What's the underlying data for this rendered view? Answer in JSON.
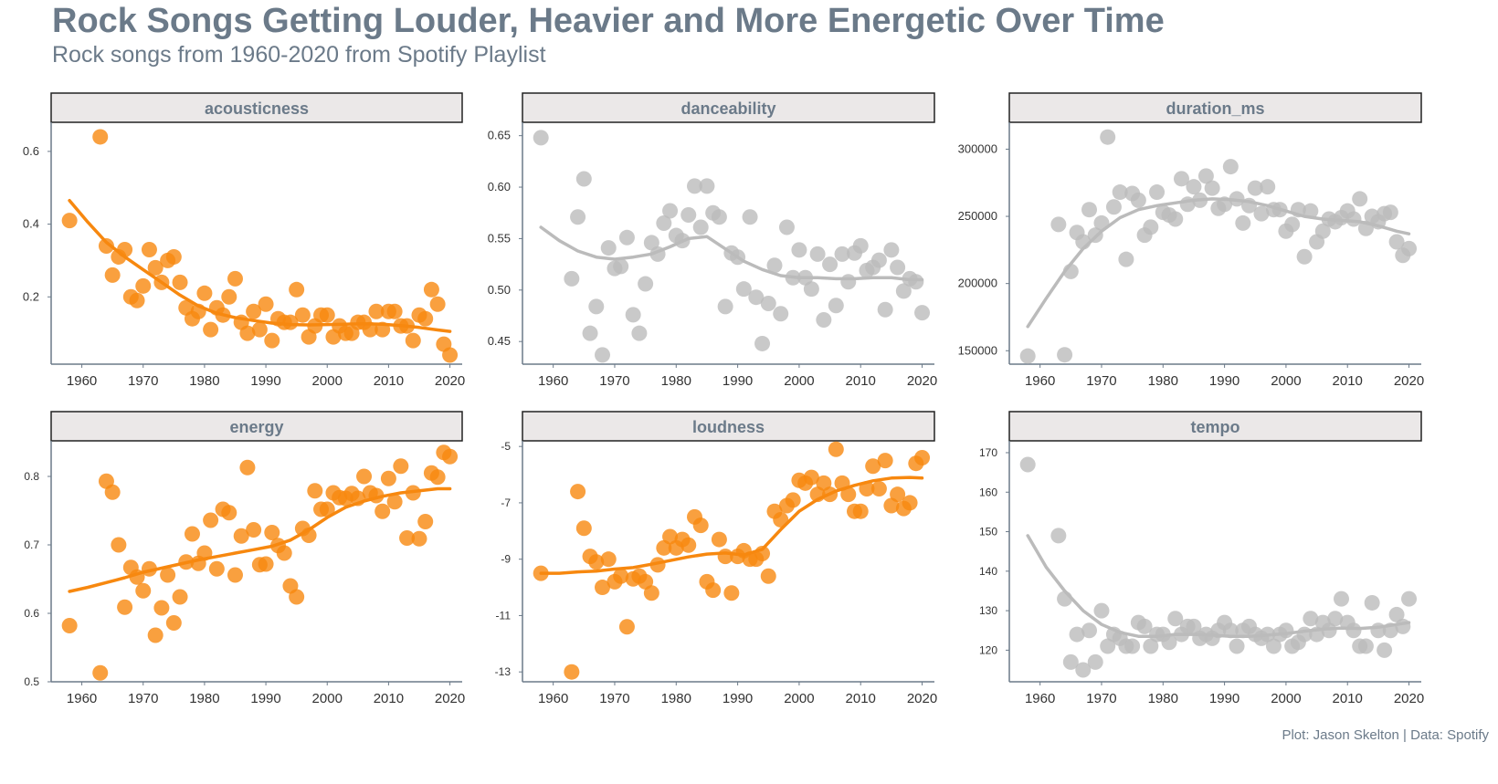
{
  "title": "Rock Songs Getting Louder, Heavier and More Energetic Over Time",
  "subtitle": "Rock songs from 1960-2020 from Spotify Playlist",
  "caption": "Plot: Jason Skelton | Data: Spotify",
  "colors": {
    "highlight": "#f7880f",
    "muted": "#bbbbbb",
    "strip_bg": "#ebe8e8",
    "axis": "#6b7a89",
    "text": "#6b7a89"
  },
  "chart_data": [
    {
      "type": "scatter",
      "title": "acousticness",
      "highlight": true,
      "xlim": [
        1955,
        2022
      ],
      "ylim": [
        0.015,
        0.68
      ],
      "xticks": [
        1960,
        1970,
        1980,
        1990,
        2000,
        2010,
        2020
      ],
      "yticks": [
        0.2,
        0.4,
        0.6
      ],
      "ytick_labels": [
        "0.2",
        "0.4",
        "0.6"
      ],
      "x": [
        1958,
        1963,
        1964,
        1965,
        1966,
        1967,
        1968,
        1969,
        1970,
        1971,
        1972,
        1973,
        1974,
        1975,
        1976,
        1977,
        1978,
        1979,
        1980,
        1981,
        1982,
        1983,
        1984,
        1985,
        1986,
        1987,
        1988,
        1989,
        1990,
        1991,
        1992,
        1993,
        1994,
        1995,
        1996,
        1997,
        1998,
        1999,
        2000,
        2001,
        2002,
        2003,
        2004,
        2005,
        2006,
        2007,
        2008,
        2009,
        2010,
        2011,
        2012,
        2013,
        2014,
        2015,
        2016,
        2017,
        2018,
        2019,
        2020
      ],
      "y": [
        0.41,
        0.64,
        0.34,
        0.26,
        0.31,
        0.33,
        0.2,
        0.19,
        0.23,
        0.33,
        0.28,
        0.24,
        0.3,
        0.31,
        0.24,
        0.17,
        0.14,
        0.16,
        0.21,
        0.11,
        0.17,
        0.15,
        0.2,
        0.25,
        0.13,
        0.1,
        0.16,
        0.11,
        0.18,
        0.08,
        0.14,
        0.13,
        0.13,
        0.22,
        0.15,
        0.09,
        0.12,
        0.15,
        0.15,
        0.09,
        0.12,
        0.1,
        0.1,
        0.13,
        0.13,
        0.11,
        0.16,
        0.11,
        0.16,
        0.16,
        0.12,
        0.12,
        0.08,
        0.15,
        0.14,
        0.22,
        0.18,
        0.07,
        0.04
      ],
      "trend_x": [
        1958,
        1961,
        1964,
        1967,
        1970,
        1973,
        1976,
        1979,
        1982,
        1985,
        1988,
        1991,
        1994,
        1997,
        2000,
        2003,
        2006,
        2009,
        2012,
        2015,
        2018,
        2020
      ],
      "trend_y": [
        0.465,
        0.405,
        0.35,
        0.31,
        0.275,
        0.24,
        0.205,
        0.175,
        0.155,
        0.143,
        0.135,
        0.128,
        0.124,
        0.123,
        0.124,
        0.125,
        0.126,
        0.125,
        0.121,
        0.116,
        0.109,
        0.105
      ]
    },
    {
      "type": "scatter",
      "title": "danceability",
      "highlight": false,
      "xlim": [
        1955,
        2022
      ],
      "ylim": [
        0.428,
        0.663
      ],
      "xticks": [
        1960,
        1970,
        1980,
        1990,
        2000,
        2010,
        2020
      ],
      "yticks": [
        0.45,
        0.5,
        0.55,
        0.6,
        0.65
      ],
      "ytick_labels": [
        "0.45",
        "0.50",
        "0.55",
        "0.60",
        "0.65"
      ],
      "x": [
        1958,
        1963,
        1964,
        1965,
        1966,
        1967,
        1968,
        1969,
        1970,
        1971,
        1972,
        1973,
        1974,
        1975,
        1976,
        1977,
        1978,
        1979,
        1980,
        1981,
        1982,
        1983,
        1984,
        1985,
        1986,
        1987,
        1988,
        1989,
        1990,
        1991,
        1992,
        1993,
        1994,
        1995,
        1996,
        1997,
        1998,
        1999,
        2000,
        2001,
        2002,
        2003,
        2004,
        2005,
        2006,
        2007,
        2008,
        2009,
        2010,
        2011,
        2012,
        2013,
        2014,
        2015,
        2016,
        2017,
        2018,
        2019,
        2020
      ],
      "y": [
        0.648,
        0.511,
        0.571,
        0.608,
        0.458,
        0.484,
        0.437,
        0.541,
        0.521,
        0.523,
        0.551,
        0.476,
        0.458,
        0.506,
        0.546,
        0.535,
        0.565,
        0.577,
        0.553,
        0.548,
        0.573,
        0.601,
        0.561,
        0.601,
        0.575,
        0.571,
        0.484,
        0.536,
        0.532,
        0.501,
        0.571,
        0.493,
        0.448,
        0.487,
        0.524,
        0.477,
        0.561,
        0.512,
        0.539,
        0.512,
        0.501,
        0.535,
        0.471,
        0.525,
        0.485,
        0.535,
        0.508,
        0.536,
        0.543,
        0.519,
        0.522,
        0.529,
        0.481,
        0.539,
        0.522,
        0.499,
        0.511,
        0.508,
        0.478
      ],
      "trend_x": [
        1958,
        1961,
        1964,
        1967,
        1970,
        1973,
        1976,
        1979,
        1982,
        1985,
        1988,
        1991,
        1994,
        1997,
        2000,
        2003,
        2006,
        2009,
        2012,
        2015,
        2018,
        2020
      ],
      "trend_y": [
        0.561,
        0.548,
        0.538,
        0.532,
        0.53,
        0.532,
        0.535,
        0.542,
        0.55,
        0.552,
        0.54,
        0.528,
        0.52,
        0.514,
        0.512,
        0.512,
        0.511,
        0.511,
        0.512,
        0.512,
        0.51,
        0.51
      ]
    },
    {
      "type": "scatter",
      "title": "duration_ms",
      "highlight": false,
      "xlim": [
        1955,
        2022
      ],
      "ylim": [
        140000,
        320000
      ],
      "xticks": [
        1960,
        1970,
        1980,
        1990,
        2000,
        2010,
        2020
      ],
      "yticks": [
        150000,
        200000,
        250000,
        300000
      ],
      "ytick_labels": [
        "150000",
        "200000",
        "250000",
        "300000"
      ],
      "x": [
        1958,
        1963,
        1964,
        1965,
        1966,
        1967,
        1968,
        1969,
        1970,
        1971,
        1972,
        1973,
        1974,
        1975,
        1976,
        1977,
        1978,
        1979,
        1980,
        1981,
        1982,
        1983,
        1984,
        1985,
        1986,
        1987,
        1988,
        1989,
        1990,
        1991,
        1992,
        1993,
        1994,
        1995,
        1996,
        1997,
        1998,
        1999,
        2000,
        2001,
        2002,
        2003,
        2004,
        2005,
        2006,
        2007,
        2008,
        2009,
        2010,
        2011,
        2012,
        2013,
        2014,
        2015,
        2016,
        2017,
        2018,
        2019,
        2020
      ],
      "y": [
        146000,
        244000,
        147000,
        209000,
        238000,
        231000,
        255000,
        236000,
        245000,
        309000,
        257000,
        268000,
        218000,
        267000,
        262000,
        236000,
        242000,
        268000,
        253000,
        251000,
        248000,
        278000,
        259000,
        272000,
        262000,
        280000,
        271000,
        256000,
        259000,
        287000,
        263000,
        245000,
        258000,
        271000,
        252000,
        272000,
        255000,
        255000,
        239000,
        244000,
        255000,
        220000,
        254000,
        231000,
        239000,
        248000,
        246000,
        249000,
        254000,
        248000,
        263000,
        241000,
        250000,
        246000,
        252000,
        253000,
        231000,
        221000,
        226000
      ],
      "trend_x": [
        1958,
        1961,
        1964,
        1967,
        1970,
        1973,
        1976,
        1979,
        1982,
        1985,
        1988,
        1991,
        1994,
        1997,
        2000,
        2003,
        2006,
        2009,
        2012,
        2015,
        2018,
        2020
      ],
      "trend_y": [
        168000,
        189000,
        209000,
        226000,
        239000,
        249000,
        255000,
        258000,
        260000,
        262000,
        263000,
        262500,
        261000,
        258000,
        254000,
        250000,
        248000,
        247000,
        246000,
        243000,
        239000,
        237000
      ]
    },
    {
      "type": "scatter",
      "title": "energy",
      "highlight": true,
      "xlim": [
        1955,
        2022
      ],
      "ylim": [
        0.5,
        0.852
      ],
      "xticks": [
        1960,
        1970,
        1980,
        1990,
        2000,
        2010,
        2020
      ],
      "yticks": [
        0.5,
        0.6,
        0.7,
        0.8
      ],
      "ytick_labels": [
        "0.5",
        "0.6",
        "0.7",
        "0.8"
      ],
      "x": [
        1958,
        1963,
        1964,
        1965,
        1966,
        1967,
        1968,
        1969,
        1970,
        1971,
        1972,
        1973,
        1974,
        1975,
        1976,
        1977,
        1978,
        1979,
        1980,
        1981,
        1982,
        1983,
        1984,
        1985,
        1986,
        1987,
        1988,
        1989,
        1990,
        1991,
        1992,
        1993,
        1994,
        1995,
        1996,
        1997,
        1998,
        1999,
        2000,
        2001,
        2002,
        2003,
        2004,
        2005,
        2006,
        2007,
        2008,
        2009,
        2010,
        2011,
        2012,
        2013,
        2014,
        2015,
        2016,
        2017,
        2018,
        2019,
        2020
      ],
      "y": [
        0.582,
        0.513,
        0.793,
        0.777,
        0.7,
        0.609,
        0.667,
        0.653,
        0.633,
        0.665,
        0.568,
        0.608,
        0.656,
        0.586,
        0.624,
        0.675,
        0.716,
        0.673,
        0.688,
        0.736,
        0.665,
        0.752,
        0.747,
        0.656,
        0.713,
        0.813,
        0.722,
        0.671,
        0.672,
        0.718,
        0.699,
        0.688,
        0.64,
        0.624,
        0.724,
        0.714,
        0.779,
        0.752,
        0.752,
        0.776,
        0.769,
        0.768,
        0.775,
        0.768,
        0.8,
        0.776,
        0.772,
        0.749,
        0.797,
        0.763,
        0.815,
        0.71,
        0.776,
        0.709,
        0.734,
        0.805,
        0.799,
        0.835,
        0.829
      ],
      "trend_x": [
        1958,
        1961,
        1964,
        1967,
        1970,
        1973,
        1976,
        1979,
        1982,
        1985,
        1988,
        1991,
        1994,
        1997,
        2000,
        2003,
        2006,
        2009,
        2012,
        2015,
        2018,
        2020
      ],
      "trend_y": [
        0.632,
        0.638,
        0.645,
        0.652,
        0.66,
        0.666,
        0.672,
        0.678,
        0.683,
        0.688,
        0.693,
        0.698,
        0.707,
        0.722,
        0.74,
        0.755,
        0.764,
        0.771,
        0.776,
        0.779,
        0.782,
        0.782
      ]
    },
    {
      "type": "scatter",
      "title": "loudness",
      "highlight": true,
      "xlim": [
        1955,
        2022
      ],
      "ylim": [
        -13.35,
        -4.8
      ],
      "xticks": [
        1960,
        1970,
        1980,
        1990,
        2000,
        2010,
        2020
      ],
      "yticks": [
        -13,
        -11,
        -9,
        -7,
        -5
      ],
      "ytick_labels": [
        "-13",
        "-11",
        "-9",
        "-7",
        "-5"
      ],
      "x": [
        1958,
        1963,
        1964,
        1965,
        1966,
        1967,
        1968,
        1969,
        1970,
        1971,
        1972,
        1973,
        1974,
        1975,
        1976,
        1977,
        1978,
        1979,
        1980,
        1981,
        1982,
        1983,
        1984,
        1985,
        1986,
        1987,
        1988,
        1989,
        1990,
        1991,
        1992,
        1993,
        1994,
        1995,
        1996,
        1997,
        1998,
        1999,
        2000,
        2001,
        2002,
        2003,
        2004,
        2005,
        2006,
        2007,
        2008,
        2009,
        2010,
        2011,
        2012,
        2013,
        2014,
        2015,
        2016,
        2017,
        2018,
        2019,
        2020
      ],
      "y": [
        -9.5,
        -13.0,
        -6.6,
        -7.9,
        -8.9,
        -9.1,
        -10.0,
        -9.0,
        -9.8,
        -9.6,
        -11.4,
        -9.7,
        -9.6,
        -9.8,
        -10.2,
        -9.2,
        -8.6,
        -8.2,
        -8.6,
        -8.3,
        -8.5,
        -7.5,
        -7.8,
        -9.8,
        -10.1,
        -8.3,
        -8.9,
        -10.2,
        -8.9,
        -8.7,
        -9.0,
        -9.0,
        -8.8,
        -9.6,
        -7.3,
        -7.6,
        -7.1,
        -6.9,
        -6.2,
        -6.3,
        -6.1,
        -6.7,
        -6.3,
        -6.7,
        -5.1,
        -6.3,
        -6.7,
        -7.3,
        -7.3,
        -6.5,
        -5.7,
        -6.5,
        -5.5,
        -7.1,
        -6.7,
        -7.2,
        -7.0,
        -5.6,
        -5.4
      ],
      "trend_x": [
        1958,
        1961,
        1964,
        1967,
        1970,
        1973,
        1976,
        1979,
        1982,
        1985,
        1988,
        1991,
        1994,
        1997,
        2000,
        2003,
        2006,
        2009,
        2012,
        2015,
        2018,
        2020
      ],
      "trend_y": [
        -9.5,
        -9.5,
        -9.45,
        -9.42,
        -9.35,
        -9.3,
        -9.18,
        -9.05,
        -8.92,
        -8.82,
        -8.78,
        -8.85,
        -8.65,
        -7.95,
        -7.3,
        -6.88,
        -6.58,
        -6.38,
        -6.22,
        -6.12,
        -6.1,
        -6.12
      ]
    },
    {
      "type": "scatter",
      "title": "tempo",
      "highlight": false,
      "xlim": [
        1955,
        2022
      ],
      "ylim": [
        112,
        173
      ],
      "xticks": [
        1960,
        1970,
        1980,
        1990,
        2000,
        2010,
        2020
      ],
      "yticks": [
        120,
        130,
        140,
        150,
        160,
        170
      ],
      "ytick_labels": [
        "120",
        "130",
        "140",
        "150",
        "160",
        "170"
      ],
      "x": [
        1958,
        1963,
        1964,
        1965,
        1966,
        1967,
        1968,
        1969,
        1970,
        1971,
        1972,
        1973,
        1974,
        1975,
        1976,
        1977,
        1978,
        1979,
        1980,
        1981,
        1982,
        1983,
        1984,
        1985,
        1986,
        1987,
        1988,
        1989,
        1990,
        1991,
        1992,
        1993,
        1994,
        1995,
        1996,
        1997,
        1998,
        1999,
        2000,
        2001,
        2002,
        2003,
        2004,
        2005,
        2006,
        2007,
        2008,
        2009,
        2010,
        2011,
        2012,
        2013,
        2014,
        2015,
        2016,
        2017,
        2018,
        2019,
        2020
      ],
      "y": [
        167,
        149,
        133,
        117,
        124,
        115,
        125,
        117,
        130,
        121,
        124,
        123,
        121,
        121,
        127,
        126,
        121,
        124,
        124,
        122,
        128,
        124,
        126,
        126,
        123,
        124,
        123,
        125,
        127,
        125,
        121,
        125,
        126,
        124,
        123,
        124,
        121,
        124,
        125,
        121,
        122,
        124,
        128,
        124,
        127,
        125,
        128,
        133,
        127,
        125,
        121,
        121,
        132,
        125,
        120,
        125,
        129,
        126,
        133
      ],
      "trend_x": [
        1958,
        1961,
        1964,
        1967,
        1970,
        1973,
        1976,
        1979,
        1982,
        1985,
        1988,
        1991,
        1994,
        1997,
        2000,
        2003,
        2006,
        2009,
        2012,
        2015,
        2018,
        2020
      ],
      "trend_y": [
        149,
        141,
        135,
        130,
        126.5,
        124.5,
        123.5,
        123.5,
        124,
        124,
        123.8,
        123.5,
        123.5,
        123.8,
        124.2,
        124.8,
        125.3,
        125.6,
        125.5,
        125.8,
        126.5,
        127
      ]
    }
  ]
}
